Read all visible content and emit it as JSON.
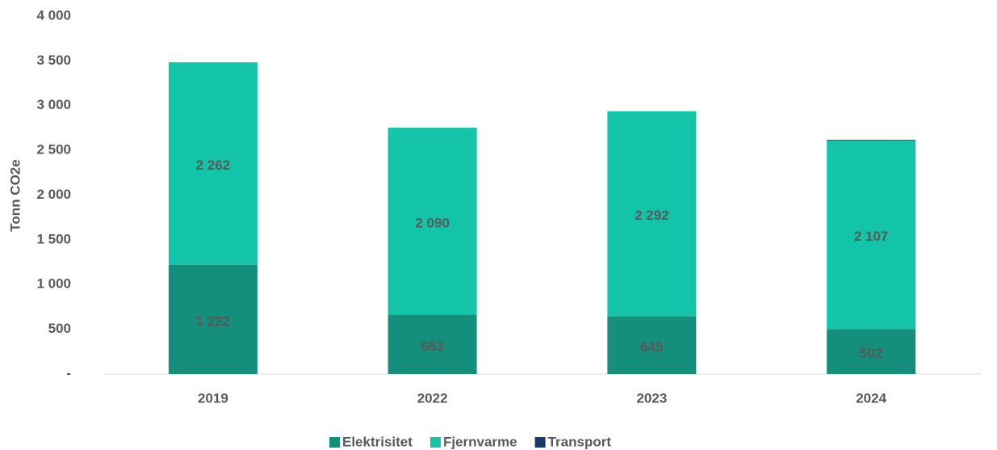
{
  "chart_data": {
    "type": "bar",
    "stacked": true,
    "y_label": "Tonn CO2e",
    "categories": [
      "2019",
      "2022",
      "2023",
      "2024"
    ],
    "series": [
      {
        "name": "Elektrisitet",
        "color": "#138f7b",
        "values": [
          1222,
          663,
          645,
          502
        ],
        "value_labels": [
          "1 222",
          "663",
          "645",
          "502"
        ]
      },
      {
        "name": "Fjernvarme",
        "color": "#14c4a9",
        "values": [
          2262,
          2090,
          2292,
          2107
        ],
        "value_labels": [
          "2 262",
          "2 090",
          "2 292",
          "2 107"
        ]
      },
      {
        "name": "Transport",
        "color": "#1a3a6b",
        "values": [
          0,
          0,
          0,
          8
        ]
      }
    ],
    "ylim": [
      0,
      4000
    ],
    "yticks": [
      {
        "value": 0,
        "label": "-"
      },
      500,
      {
        "value": 1000,
        "label": "1 000"
      },
      {
        "value": 1500,
        "label": "1 500"
      },
      {
        "value": 2000,
        "label": "2 000"
      },
      {
        "value": 2500,
        "label": "2 500"
      },
      {
        "value": 3000,
        "label": "3 000"
      },
      {
        "value": 3500,
        "label": "3 500"
      },
      {
        "value": 4000,
        "label": "4 000"
      }
    ],
    "legend": "bottom"
  }
}
